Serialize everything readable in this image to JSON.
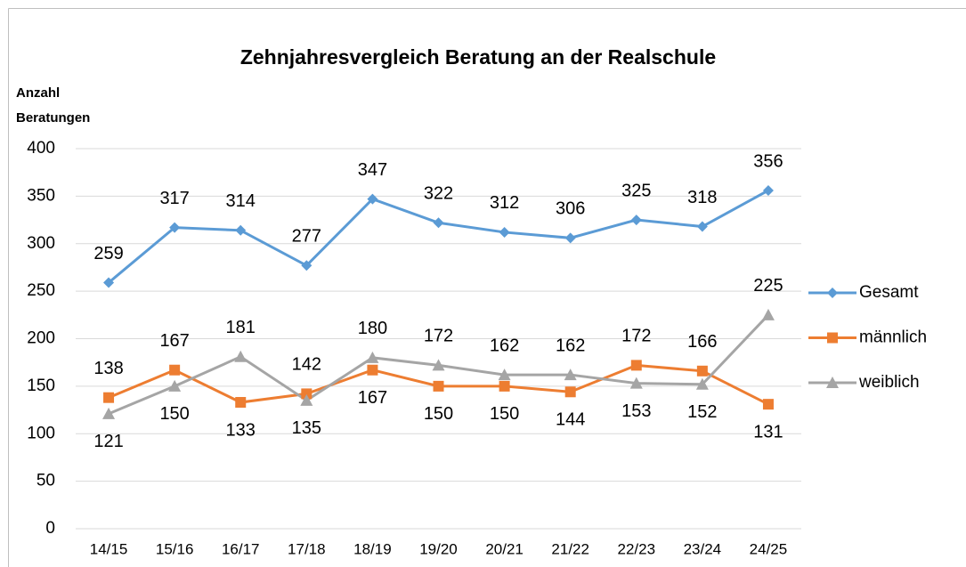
{
  "chart_data": {
    "type": "line",
    "title": "Zehnjahresvergleich Beratung an der Realschule",
    "ylabel": [
      "Anzahl",
      "Beratungen"
    ],
    "categories": [
      "14/15",
      "15/16",
      "16/17",
      "17/18",
      "18/19",
      "19/20",
      "20/21",
      "21/22",
      "22/23",
      "23/24",
      "24/25"
    ],
    "series": [
      {
        "name": "Gesamt",
        "color": "#5b9bd5",
        "marker": "diamond",
        "values": [
          259,
          317,
          314,
          277,
          347,
          322,
          312,
          306,
          325,
          318,
          356
        ]
      },
      {
        "name": "männlich",
        "color": "#ed7d31",
        "marker": "square",
        "values": [
          138,
          167,
          133,
          142,
          167,
          150,
          150,
          144,
          172,
          166,
          131
        ]
      },
      {
        "name": "weiblich",
        "color": "#a5a5a5",
        "marker": "triangle",
        "values": [
          121,
          150,
          181,
          135,
          180,
          172,
          162,
          162,
          153,
          152,
          225
        ]
      }
    ],
    "ylim": [
      0,
      400
    ],
    "yticks": [
      0,
      50,
      100,
      150,
      200,
      250,
      300,
      350,
      400
    ],
    "grid": true,
    "legend": "right"
  }
}
